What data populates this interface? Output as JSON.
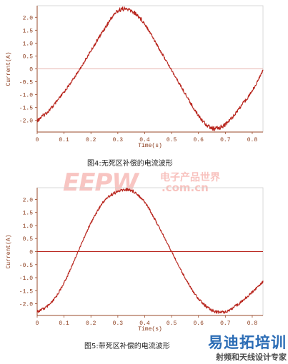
{
  "chart_data": [
    {
      "type": "line",
      "title": "图4:无死区补偿的电流波形",
      "xlabel": "Time(s)",
      "ylabel": "Current(A)",
      "xlim": [
        0,
        0.84
      ],
      "ylim": [
        -2.45,
        2.45
      ],
      "xticks": [
        "0",
        "0.1",
        "0.2",
        "0.3",
        "0.4",
        "0.5",
        "0.6",
        "0.7",
        "0.8"
      ],
      "yticks": [
        "2.0",
        "1.5",
        "1.0",
        "0.5",
        "0",
        "-0.5",
        "-1.0",
        "-1.5",
        "-2.0"
      ],
      "grid": false,
      "zero_line": true,
      "series": [
        {
          "color": "#b8241c",
          "x": [
            0.0,
            0.05,
            0.1,
            0.15,
            0.2,
            0.25,
            0.3,
            0.35,
            0.4,
            0.45,
            0.5,
            0.55,
            0.6,
            0.65,
            0.7,
            0.75,
            0.8,
            0.84
          ],
          "y": [
            -2.0,
            -1.55,
            -0.9,
            -0.15,
            0.7,
            1.55,
            2.25,
            2.25,
            1.75,
            0.85,
            -0.05,
            -0.95,
            -1.8,
            -2.3,
            -2.15,
            -1.55,
            -0.85,
            -0.05
          ]
        }
      ]
    },
    {
      "type": "line",
      "title": "图5:带死区补偿的电流波形",
      "xlabel": "Time(s)",
      "ylabel": "Current(A)",
      "xlim": [
        0,
        0.84
      ],
      "ylim": [
        -2.45,
        2.45
      ],
      "xticks": [
        "0",
        "0.1",
        "0.2",
        "0.3",
        "0.4",
        "0.5",
        "0.6",
        "0.7",
        "0.8"
      ],
      "yticks": [
        "2.0",
        "1.5",
        "1.0",
        "0.5",
        "0",
        "-0.5",
        "-1.0",
        "-1.5",
        "-2.0"
      ],
      "grid": false,
      "zero_line": true,
      "series": [
        {
          "color": "#b8241c",
          "x": [
            0.0,
            0.05,
            0.1,
            0.15,
            0.2,
            0.25,
            0.3,
            0.35,
            0.4,
            0.45,
            0.5,
            0.55,
            0.6,
            0.65,
            0.7,
            0.75,
            0.8,
            0.84
          ],
          "y": [
            -2.3,
            -2.0,
            -1.2,
            -0.05,
            1.1,
            1.95,
            2.3,
            2.35,
            1.9,
            1.0,
            0.0,
            -1.0,
            -1.8,
            -2.25,
            -2.3,
            -2.0,
            -1.55,
            -1.15
          ]
        }
      ]
    }
  ],
  "watermark": {
    "logo": "EEPW",
    "cn": "电子产品世界",
    "url": ".com.cn"
  },
  "brand": {
    "main": "易迪拓培训",
    "sub": "射频和天线设计专家"
  }
}
